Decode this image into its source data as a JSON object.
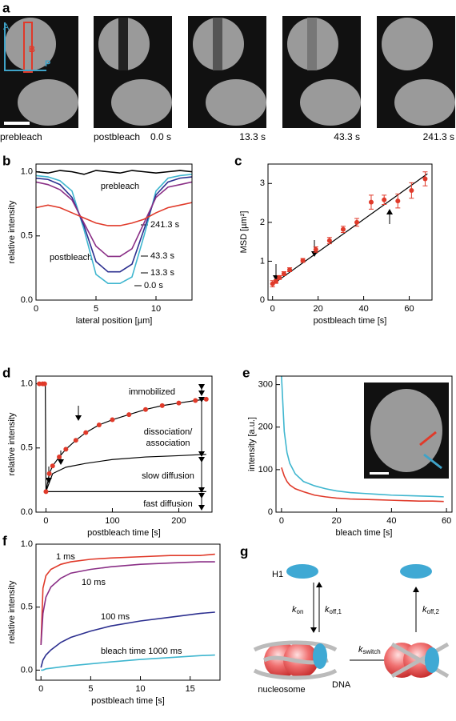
{
  "panel_a": {
    "label": "a",
    "regions": [
      "A",
      "B",
      "P"
    ],
    "captions": [
      "prebleach",
      "postbleach",
      "0.0 s",
      "13.3 s",
      "43.3 s",
      "241.3 s"
    ]
  },
  "chart_data": [
    {
      "type": "line",
      "label": "b",
      "xlabel": "lateral position [µm]",
      "ylabel": "relative intensity",
      "xlim": [
        0,
        13
      ],
      "xticks": [
        0,
        5,
        10
      ],
      "ylim": [
        0,
        1.06
      ],
      "yticks": [
        {
          "value": 0,
          "label": "0.0"
        },
        {
          "value": 0.5,
          "label": "0.5"
        },
        {
          "value": 1,
          "label": "1.0"
        }
      ],
      "annotations": [
        "postbleach"
      ],
      "x": [
        0,
        1,
        2,
        3,
        4,
        5,
        6,
        7,
        8,
        9,
        10,
        11,
        12,
        13
      ],
      "series": [
        {
          "name": "prebleach",
          "color": "#000000",
          "values": [
            1.0,
            0.99,
            1.01,
            1.0,
            0.98,
            1.01,
            1.0,
            0.99,
            1.01,
            1.0,
            0.99,
            1.0,
            1.01,
            1.0
          ]
        },
        {
          "name": "0.0 s",
          "color": "#3fb6cf",
          "values": [
            0.97,
            0.96,
            0.93,
            0.85,
            0.55,
            0.2,
            0.13,
            0.13,
            0.18,
            0.5,
            0.85,
            0.95,
            0.97,
            0.98
          ]
        },
        {
          "name": "13.3 s",
          "color": "#2c2f8f",
          "values": [
            0.95,
            0.94,
            0.9,
            0.8,
            0.58,
            0.3,
            0.22,
            0.22,
            0.28,
            0.55,
            0.82,
            0.92,
            0.95,
            0.96
          ]
        },
        {
          "name": "43.3 s",
          "color": "#8a2f86",
          "values": [
            0.92,
            0.9,
            0.86,
            0.78,
            0.6,
            0.42,
            0.34,
            0.34,
            0.4,
            0.6,
            0.8,
            0.88,
            0.9,
            0.92
          ]
        },
        {
          "name": "241.3 s",
          "color": "#e03a2a",
          "values": [
            0.72,
            0.74,
            0.72,
            0.68,
            0.64,
            0.6,
            0.58,
            0.58,
            0.6,
            0.63,
            0.68,
            0.72,
            0.74,
            0.76
          ]
        }
      ]
    },
    {
      "type": "scatter",
      "label": "c",
      "xlabel": "postbleach time [s]",
      "ylabel": "MSD [µm²]",
      "xlim": [
        -2,
        70
      ],
      "xticks": [
        0,
        20,
        40,
        60
      ],
      "ylim": [
        0,
        3.5
      ],
      "yticks": [
        0,
        1,
        2,
        3
      ],
      "series": [
        {
          "color": "#e03a2a",
          "x": [
            0,
            1.5,
            3,
            5,
            7.5,
            13.3,
            19,
            25,
            31,
            37,
            43.3,
            49,
            55,
            61,
            67
          ],
          "values": [
            0.42,
            0.48,
            0.58,
            0.68,
            0.78,
            1.02,
            1.3,
            1.53,
            1.82,
            2.0,
            2.52,
            2.58,
            2.55,
            2.82,
            3.12
          ],
          "errors": [
            0.08,
            0.05,
            0.05,
            0.05,
            0.05,
            0.05,
            0.07,
            0.08,
            0.08,
            0.1,
            0.18,
            0.12,
            0.18,
            0.2,
            0.18
          ]
        }
      ],
      "lines": [
        {
          "color": "#000000",
          "x": [
            0,
            68
          ],
          "values": [
            0.4,
            3.25
          ]
        }
      ]
    },
    {
      "type": "scatter",
      "label": "d",
      "xlabel": "postbleach time [s]",
      "ylabel": "relative intensity",
      "xlim": [
        -15,
        250
      ],
      "xticks": [
        0,
        100,
        200
      ],
      "ylim": [
        0,
        1.06
      ],
      "yticks": [
        {
          "value": 0,
          "label": "0.0"
        },
        {
          "value": 0.5,
          "label": "0.5"
        },
        {
          "value": 1,
          "label": "1.0"
        }
      ],
      "annotations": [
        "immobilized",
        "dissociation/",
        "association",
        "slow diffusion",
        "fast diffusion"
      ],
      "series": [
        {
          "color": "#e03a2a",
          "x": [
            -10,
            -5,
            -2,
            0,
            5,
            10,
            20,
            30,
            45,
            60,
            80,
            100,
            125,
            150,
            175,
            200,
            225,
            241.3
          ],
          "values": [
            1.0,
            1.0,
            1.0,
            0.16,
            0.3,
            0.36,
            0.43,
            0.49,
            0.56,
            0.62,
            0.68,
            0.72,
            0.76,
            0.8,
            0.83,
            0.85,
            0.87,
            0.88
          ]
        }
      ],
      "lines": [
        {
          "color": "#000000",
          "x": [
            -10,
            -1,
            0,
            5,
            10,
            20,
            30,
            45,
            60,
            80,
            100,
            125,
            150,
            175,
            200,
            225,
            241.3
          ],
          "values": [
            1.0,
            1.0,
            0.16,
            0.3,
            0.36,
            0.43,
            0.49,
            0.56,
            0.62,
            0.68,
            0.72,
            0.76,
            0.8,
            0.83,
            0.85,
            0.87,
            0.88
          ]
        },
        {
          "color": "#000000",
          "x": [
            0,
            10,
            30,
            60,
            100,
            150,
            200,
            241.3
          ],
          "values": [
            0.16,
            0.3,
            0.35,
            0.38,
            0.41,
            0.43,
            0.44,
            0.45
          ]
        },
        {
          "color": "#000000",
          "x": [
            0,
            241.3
          ],
          "values": [
            0.16,
            0.16
          ]
        }
      ]
    },
    {
      "type": "line",
      "label": "e",
      "xlabel": "bleach time [s]",
      "ylabel": "intensity [a.u.]",
      "xlim": [
        -2,
        62
      ],
      "xticks": [
        0,
        20,
        40,
        60
      ],
      "ylim": [
        0,
        320
      ],
      "yticks": [
        0,
        100,
        200,
        300
      ],
      "x": [
        0,
        1,
        2,
        3,
        5,
        8,
        12,
        16,
        20,
        25,
        30,
        35,
        40,
        45,
        50,
        55,
        59
      ],
      "series": [
        {
          "color": "#3fb6cf",
          "values": [
            320,
            190,
            140,
            115,
            90,
            72,
            62,
            55,
            50,
            46,
            44,
            42,
            40,
            39,
            38,
            37,
            36
          ]
        },
        {
          "color": "#e03a2a",
          "values": [
            105,
            85,
            72,
            64,
            55,
            48,
            40,
            36,
            33,
            31,
            30,
            29,
            28,
            27,
            26,
            26,
            25
          ]
        }
      ]
    },
    {
      "type": "line",
      "label": "f",
      "xlabel": "postbleach time [s]",
      "ylabel": "relative intensity",
      "xlim": [
        -0.5,
        18
      ],
      "xticks": [
        0,
        5,
        10,
        15
      ],
      "ylim": [
        -0.08,
        1.0
      ],
      "yticks": [
        {
          "value": 0,
          "label": "0.0"
        },
        {
          "value": 0.5,
          "label": "0.5"
        },
        {
          "value": 1,
          "label": "1.0"
        }
      ],
      "x": [
        0,
        0.2,
        0.5,
        1,
        2,
        3,
        5,
        7,
        10,
        13,
        16,
        17.5
      ],
      "series": [
        {
          "name": "1 ms",
          "color": "#e03a2a",
          "values": [
            0.2,
            0.65,
            0.75,
            0.8,
            0.84,
            0.86,
            0.88,
            0.89,
            0.9,
            0.91,
            0.91,
            0.92
          ]
        },
        {
          "name": "10 ms",
          "color": "#8a2f86",
          "values": [
            0.2,
            0.45,
            0.58,
            0.66,
            0.73,
            0.77,
            0.8,
            0.82,
            0.84,
            0.85,
            0.86,
            0.86
          ]
        },
        {
          "name": "100 ms",
          "color": "#2c2f8f",
          "values": [
            0.02,
            0.08,
            0.12,
            0.16,
            0.22,
            0.26,
            0.31,
            0.35,
            0.39,
            0.42,
            0.45,
            0.46
          ]
        },
        {
          "name": "bleach time 1000 ms",
          "color": "#3fb6cf",
          "values": [
            0.0,
            0.0,
            0.01,
            0.015,
            0.025,
            0.035,
            0.05,
            0.065,
            0.085,
            0.1,
            0.115,
            0.12
          ]
        }
      ]
    }
  ],
  "panel_g": {
    "label": "g",
    "h1": "H1",
    "k_on": {
      "base": "k",
      "sub": "on"
    },
    "k_off1": {
      "base": "k",
      "sub": "off,1"
    },
    "k_switch": {
      "base": "k",
      "sub": "switch"
    },
    "k_off2": {
      "base": "k",
      "sub": "off,2"
    },
    "nucleosome": "nucleosome",
    "dna": "DNA"
  }
}
